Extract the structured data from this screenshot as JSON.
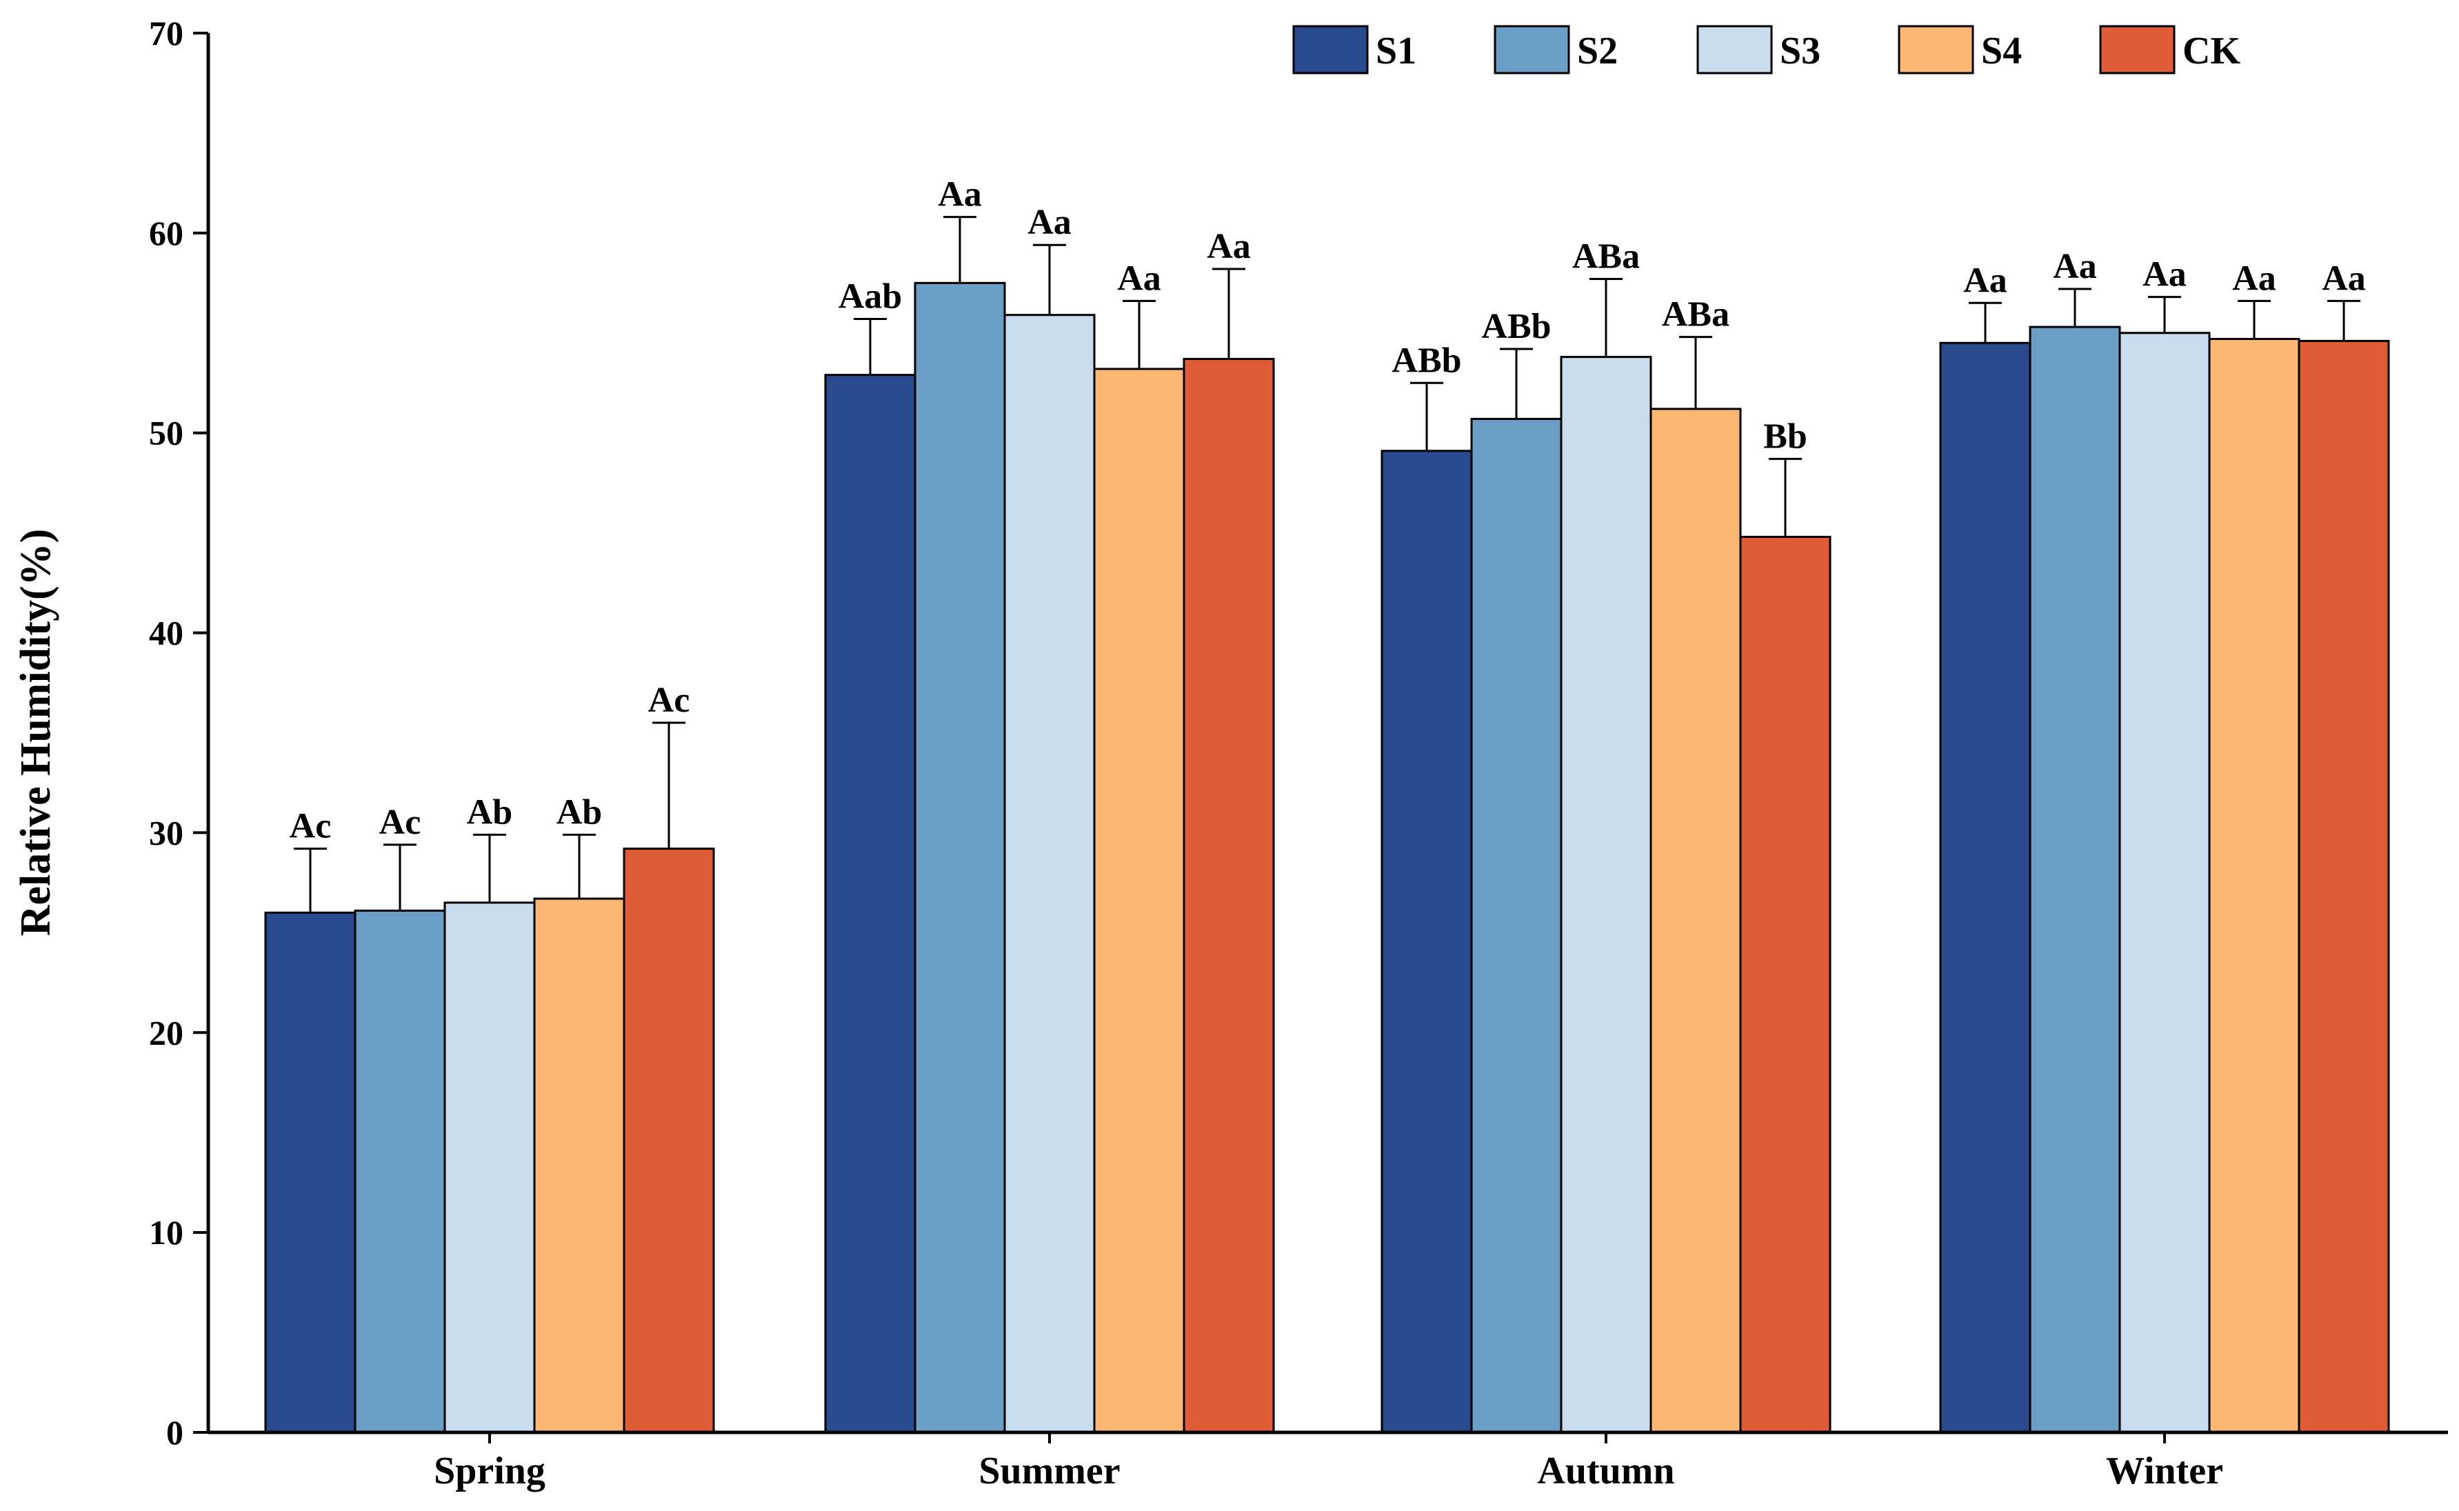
{
  "chart_data": {
    "type": "bar",
    "title": "",
    "xlabel": "",
    "ylabel": "Relative Humidity(%)",
    "ylim": [
      0,
      70
    ],
    "yticks": [
      0,
      10,
      20,
      30,
      40,
      50,
      60,
      70
    ],
    "grid": false,
    "legend_position": "top-right",
    "categories": [
      "Spring",
      "Summer",
      "Autumn",
      "Winter"
    ],
    "series": [
      {
        "name": "S1",
        "color": "#2a4a90",
        "values": [
          26.0,
          52.9,
          49.1,
          54.5
        ],
        "errors": [
          3.2,
          2.8,
          3.4,
          2.0
        ],
        "labels": [
          "Ac",
          "Aab",
          "ABb",
          "Aa"
        ]
      },
      {
        "name": "S2",
        "color": "#6b9ec4",
        "values": [
          26.1,
          57.5,
          50.7,
          55.3
        ],
        "errors": [
          3.3,
          3.3,
          3.5,
          1.9
        ],
        "labels": [
          "Ac",
          "Aa",
          "ABb",
          "Aa"
        ]
      },
      {
        "name": "S3",
        "color": "#c9ddef",
        "values": [
          26.5,
          55.9,
          53.8,
          55.0
        ],
        "errors": [
          3.4,
          3.5,
          3.9,
          1.8
        ],
        "labels": [
          "Ab",
          "Aa",
          "ABa",
          "Aa"
        ]
      },
      {
        "name": "S4",
        "color": "#fcb772",
        "values": [
          26.7,
          53.2,
          51.2,
          54.7
        ],
        "errors": [
          3.2,
          3.4,
          3.6,
          1.9
        ],
        "labels": [
          "Ab",
          "Aa",
          "ABa",
          "Aa"
        ]
      },
      {
        "name": "CK",
        "color": "#e05c36",
        "values": [
          29.2,
          53.7,
          44.8,
          54.6
        ],
        "errors": [
          6.3,
          4.5,
          3.9,
          2.0
        ],
        "labels": [
          "Ac",
          "Aa",
          "Bb",
          "Aa"
        ]
      }
    ]
  }
}
